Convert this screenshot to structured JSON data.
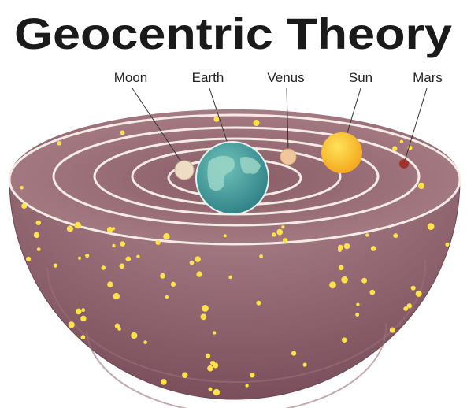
{
  "title": "Geocentric Theory",
  "nodes": [
    {
      "label": "Moon"
    },
    {
      "label": "Earth"
    },
    {
      "label": "Venus"
    },
    {
      "label": "Sun"
    },
    {
      "label": "Mars"
    }
  ]
}
